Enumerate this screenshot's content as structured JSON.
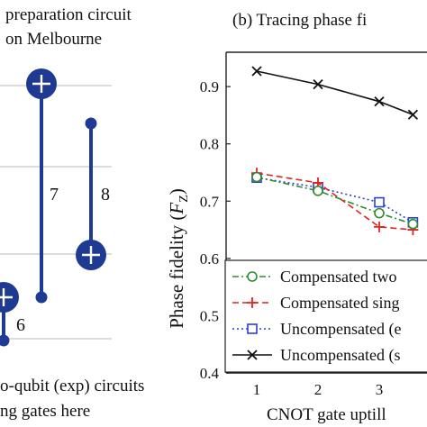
{
  "left_panel": {
    "title_line1": "preparation circuit",
    "title_line2": "on Melbourne",
    "gate_labels": [
      "7",
      "8",
      "6"
    ],
    "footer_line1": "o-qubit (exp) circuits",
    "footer_line2": "ng gates here",
    "colors": {
      "circuit": "#1f3a93",
      "wire": "#c8c8c8"
    }
  },
  "chart_data": {
    "type": "line",
    "panel_label": "(b) Tracing phase fi",
    "xlabel": "CNOT gate uptill",
    "ylabel": "Phase fidelity (F_Z)",
    "ylabel_main": "Phase fidelity (",
    "ylabel_F": "F",
    "ylabel_sub": "Z",
    "ylabel_close": ")",
    "x_ticks": [
      "1",
      "2",
      "3"
    ],
    "y_ticks": [
      "0.4",
      "0.5",
      "0.6",
      "0.7",
      "0.8",
      "0.9"
    ],
    "ylim": [
      0.4,
      0.96
    ],
    "grid": false,
    "legend_position": "bottom-right",
    "series": [
      {
        "name": "Compensated two",
        "x": [
          1,
          2,
          3,
          3.55
        ],
        "values": [
          0.742,
          0.718,
          0.679,
          0.66
        ],
        "color": "#2e8b2e",
        "marker": "circle",
        "dash": "dashdot"
      },
      {
        "name": "Compensated sing",
        "x": [
          1,
          2,
          3,
          3.55
        ],
        "values": [
          0.749,
          0.732,
          0.655,
          0.65
        ],
        "color": "#e32222",
        "marker": "plus",
        "dash": "dashed"
      },
      {
        "name": "Uncompensated (e",
        "x": [
          1,
          2,
          3,
          3.55
        ],
        "values": [
          0.741,
          0.724,
          0.698,
          0.663
        ],
        "color": "#2b3fd6",
        "marker": "square",
        "dash": "dotted"
      },
      {
        "name": "Uncompensated (s",
        "x": [
          1,
          2,
          3,
          3.55
        ],
        "values": [
          0.927,
          0.904,
          0.874,
          0.851
        ],
        "color": "#111111",
        "marker": "cross",
        "dash": "solid"
      }
    ]
  }
}
